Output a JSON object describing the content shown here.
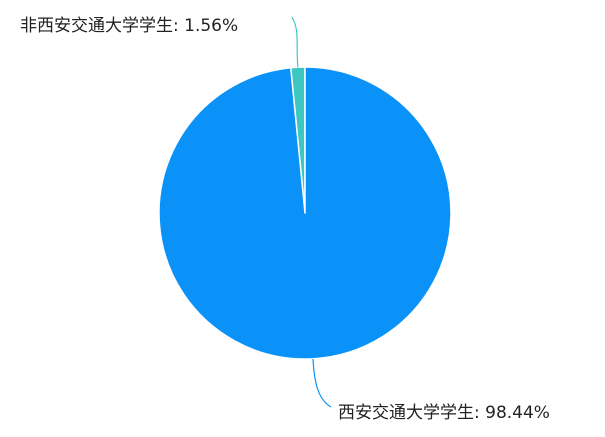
{
  "chart_data": {
    "type": "pie",
    "title": "",
    "categories": [
      "非西安交通大学学生",
      "西安交通大学学生"
    ],
    "values": [
      1.56,
      98.44
    ],
    "labels": [
      "非西安交通大学学生: 1.56%",
      "西安交通大学学生: 98.44%"
    ],
    "colors": [
      "#3cc8c0",
      "#0a92f8"
    ],
    "legend": "none",
    "unit": "%"
  }
}
